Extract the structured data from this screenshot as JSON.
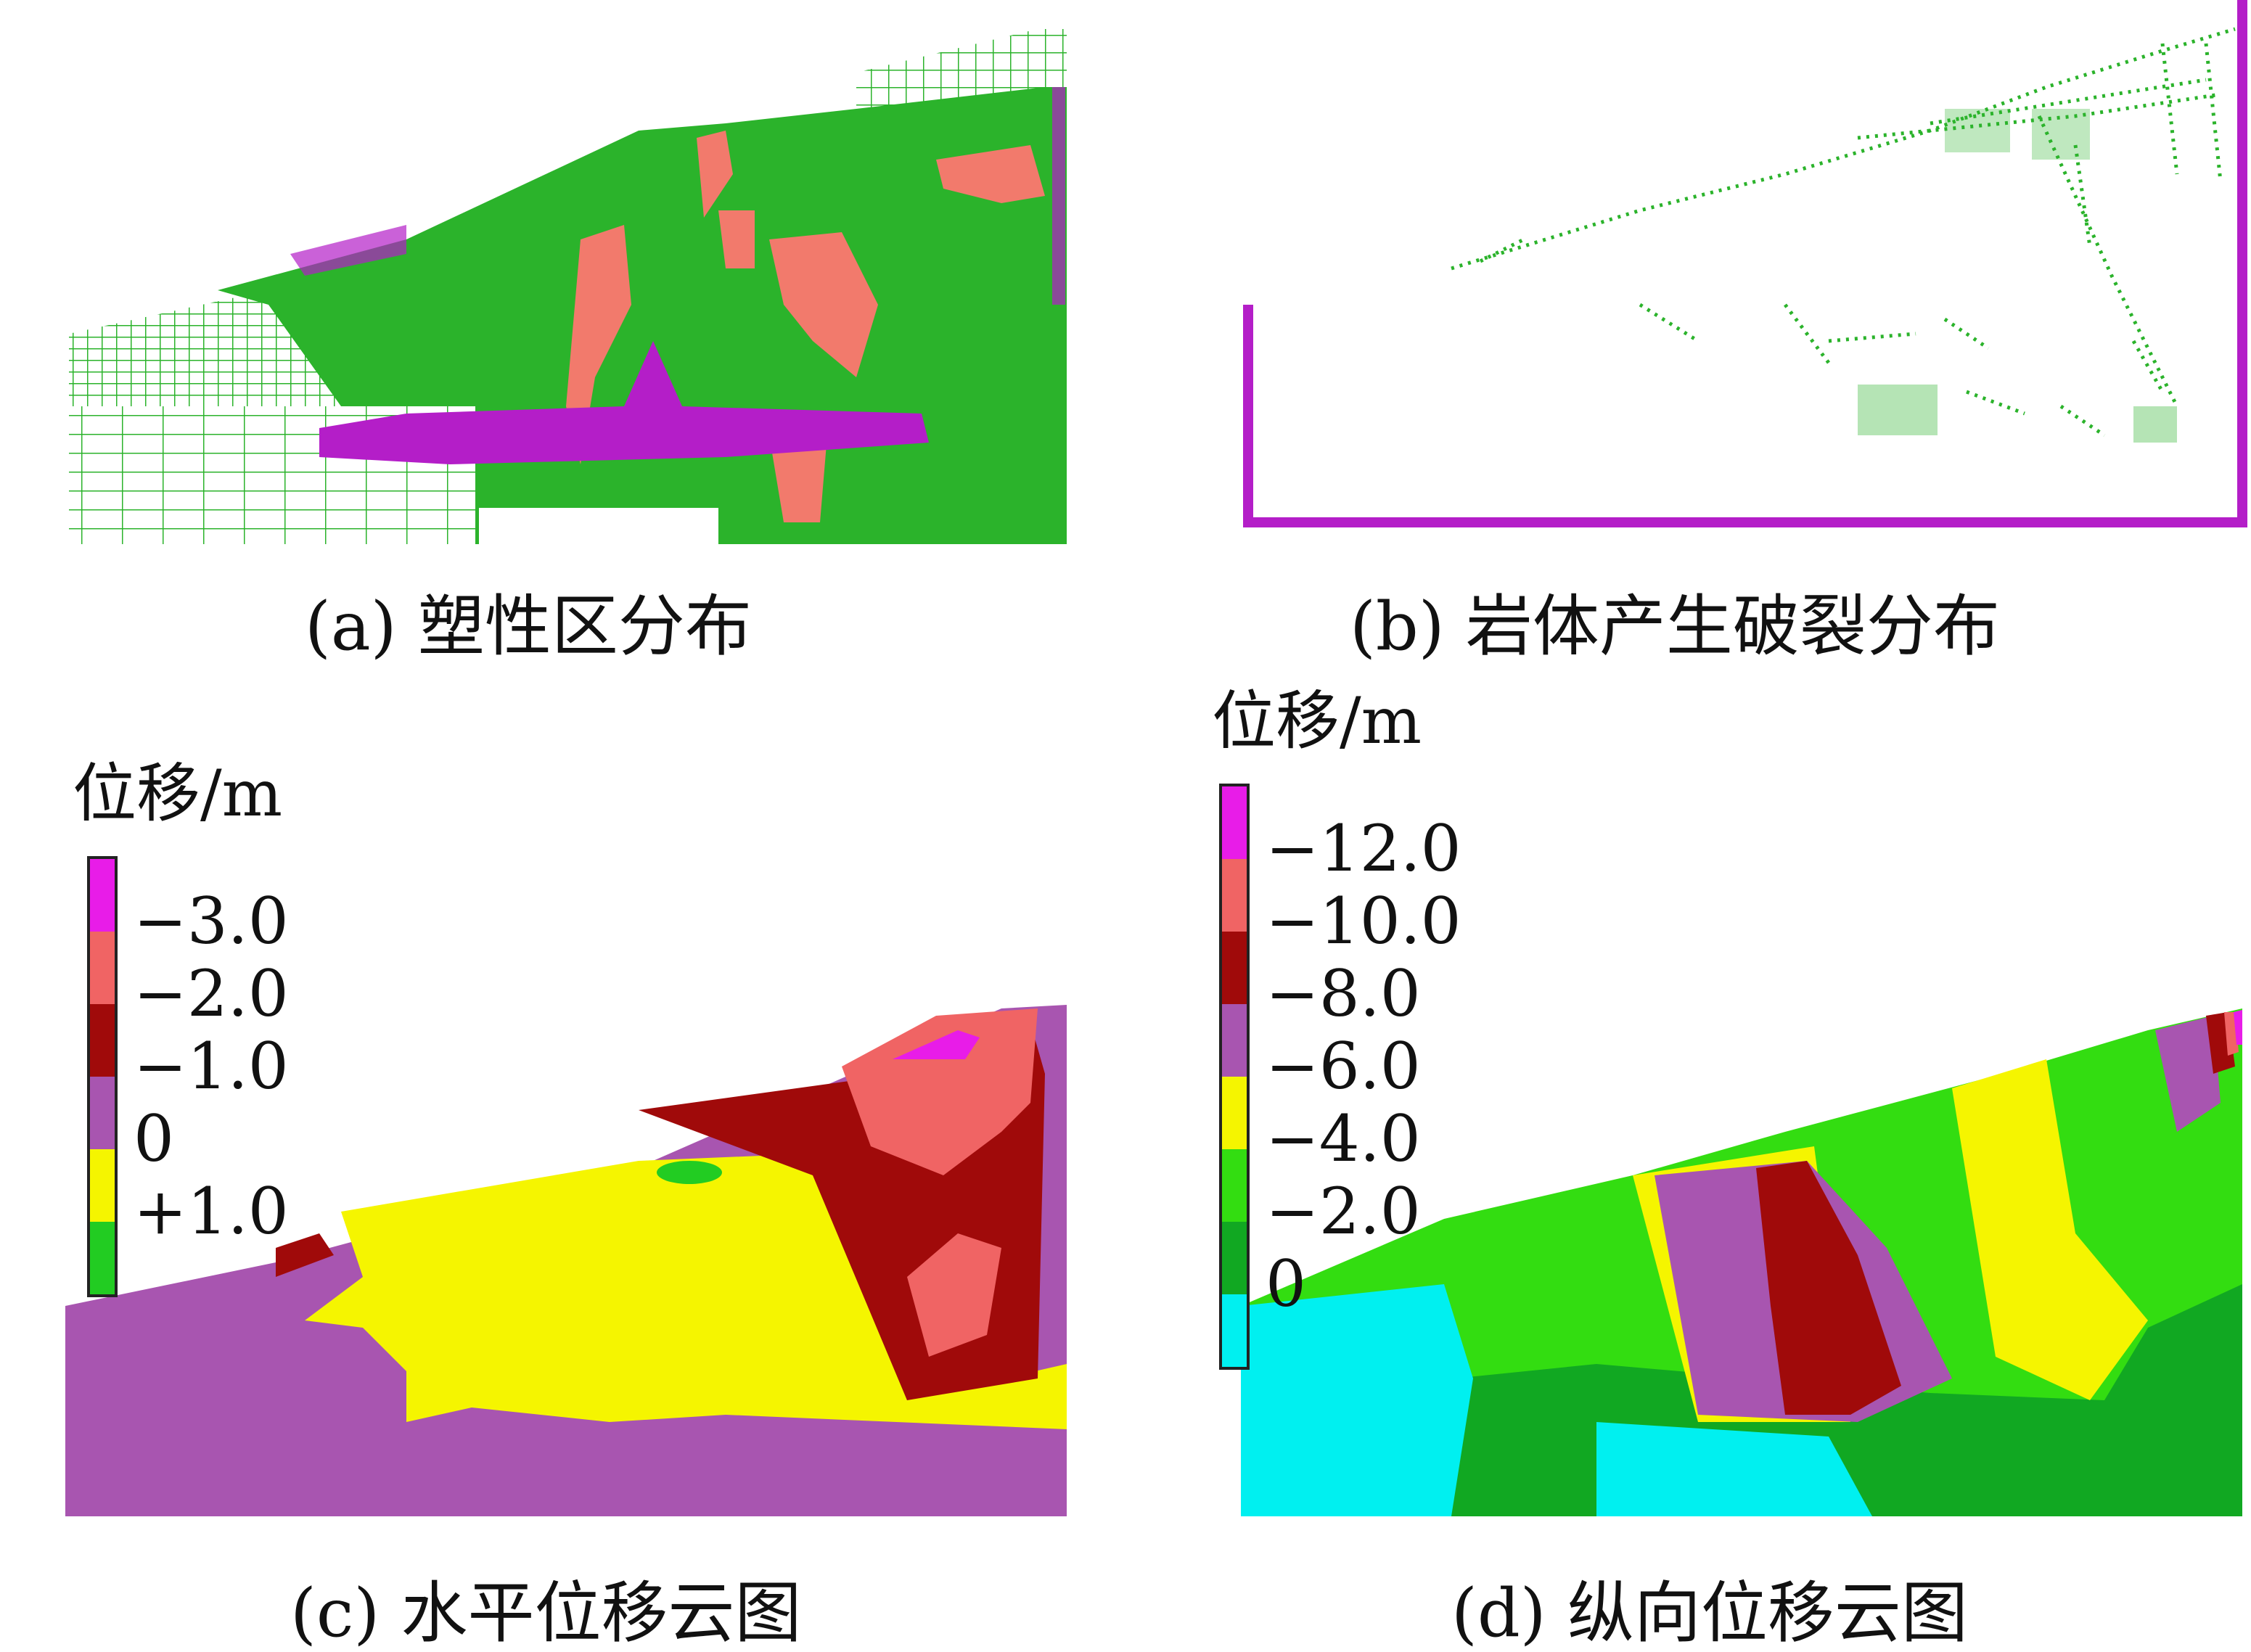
{
  "panels": [
    {
      "id": "a",
      "caption": "(a)  塑性区分布"
    },
    {
      "id": "b",
      "caption": "(b)  岩体产生破裂分布"
    },
    {
      "id": "c",
      "caption": "(c)  水平位移云图",
      "legend": {
        "title": "位移/m",
        "items": [
          {
            "label": "−3.0",
            "color": "#e81ce8"
          },
          {
            "label": "−2.0",
            "color": "#f06464"
          },
          {
            "label": "−1.0",
            "color": "#a00a0a"
          },
          {
            "label": "0",
            "color": "#a855b0"
          },
          {
            "label": "+1.0",
            "color": "#f5f500"
          },
          {
            "label": "",
            "color": "#22cc22"
          }
        ]
      }
    },
    {
      "id": "d",
      "caption": "(d)  纵向位移云图",
      "legend": {
        "title": "位移/m",
        "items": [
          {
            "label": "−12.0",
            "color": "#e81ce8"
          },
          {
            "label": "−10.0",
            "color": "#f06464"
          },
          {
            "label": "−8.0",
            "color": "#a00a0a"
          },
          {
            "label": "−6.0",
            "color": "#a855b0"
          },
          {
            "label": "−4.0",
            "color": "#f5f500"
          },
          {
            "label": "−2.0",
            "color": "#33dd11"
          },
          {
            "label": "0",
            "color": "#11a822"
          },
          {
            "label": "",
            "color": "#00f0f0"
          }
        ]
      }
    }
  ],
  "colors": {
    "green": "#2bb32b",
    "salmon": "#f27a6c",
    "magenta": "#b41ec8",
    "purple": "#a855b0",
    "yellow": "#f5f500",
    "darkred": "#a00a0a",
    "cyan": "#00f0f0",
    "lime": "#33dd11"
  }
}
